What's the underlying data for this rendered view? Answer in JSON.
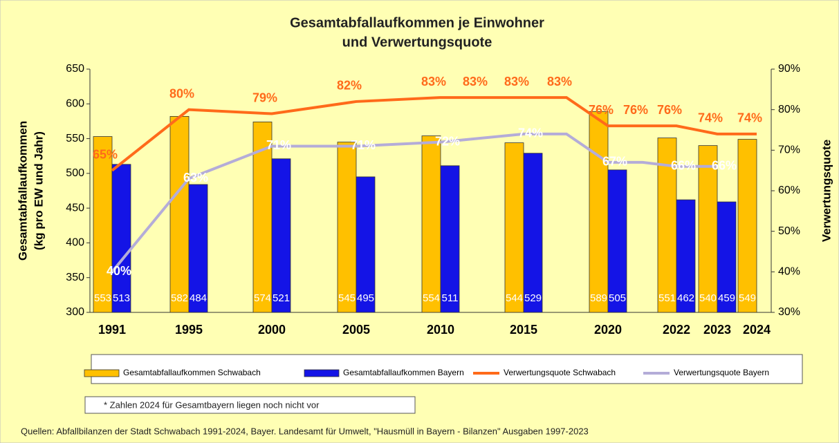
{
  "chart_data": {
    "type": "bar",
    "title": [
      "Gesamtabfallaufkommen je Einwohner",
      "und Verwertungsquote"
    ],
    "ylabel": [
      "Gesamtabfallaufkommen",
      "(kg pro EW und Jahr)"
    ],
    "y2label": "Verwertungsquote",
    "categories": [
      "1991",
      "1995",
      "2000",
      "2005",
      "2010",
      null,
      "2015",
      null,
      "2020",
      null,
      "2022",
      "2023",
      "2024"
    ],
    "series": [
      {
        "name": "Gesamtabfallaufkommen Schwabach",
        "type": "bar",
        "color": "#ffc000",
        "label_color": "#ffffff",
        "values": [
          553,
          582,
          574,
          545,
          554,
          null,
          544,
          null,
          589,
          null,
          551,
          540,
          549
        ]
      },
      {
        "name": "Gesamtabfallaufkommen Bayern",
        "type": "bar",
        "color": "#1414e6",
        "label_color": "#ffffff",
        "values": [
          513,
          484,
          521,
          495,
          511,
          null,
          529,
          null,
          505,
          null,
          462,
          459,
          null
        ]
      },
      {
        "name": "Verwertungsquote Schwabach",
        "type": "line",
        "axis": "y2",
        "color": "#ff6a1a",
        "label_color": "#ff6a1a",
        "values": [
          65,
          80,
          79,
          82,
          83,
          83,
          83,
          83,
          76,
          76,
          76,
          74,
          74
        ],
        "value_labels": [
          "65%",
          "80%",
          "79%",
          "82%",
          "83%",
          "83%",
          "83%",
          "83%",
          "76%",
          "76%",
          "76%",
          "74%",
          "74%"
        ]
      },
      {
        "name": "Verwertungsquote Bayern",
        "type": "line",
        "axis": "y2",
        "color": "#b4acd8",
        "label_color": "#ffffff",
        "values": [
          40,
          63,
          71,
          71,
          72,
          73,
          74,
          74,
          67,
          67,
          66,
          66,
          null
        ],
        "value_labels": [
          "40%",
          "63%",
          "71%",
          "71%",
          "72%",
          null,
          "74%",
          null,
          "67%",
          null,
          "66%",
          "66%",
          null
        ]
      }
    ],
    "ylim": [
      300,
      650
    ],
    "yticks": [
      300,
      350,
      400,
      450,
      500,
      550,
      600,
      650
    ],
    "y2lim": [
      30,
      90
    ],
    "y2ticks": [
      {
        "value": 30,
        "label": "30%"
      },
      {
        "value": 40,
        "label": "40%"
      },
      {
        "value": 50,
        "label": "50%"
      },
      {
        "value": 60,
        "label": "60%"
      },
      {
        "value": 70,
        "label": "70%"
      },
      {
        "value": 80,
        "label": "80%"
      },
      {
        "value": 90,
        "label": "90%"
      }
    ],
    "grid": false,
    "note": "* Zahlen  2024 für Gesamtbayern  liegen noch nicht vor",
    "source": "Quellen: Abfallbilanzen der Stadt Schwabach 1991-2024, Bayer. Landesamt für Umwelt, \"Hausmüll in Bayern - Bilanzen\" Ausgaben 1997-2023"
  }
}
